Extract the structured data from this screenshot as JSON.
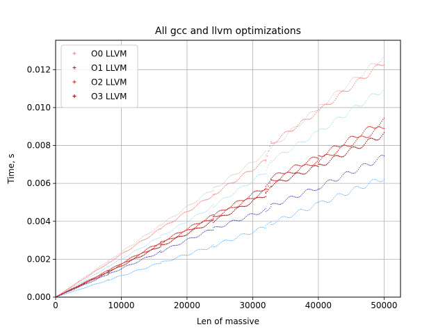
{
  "chart_data": {
    "type": "scatter",
    "title": "All gcc and llvm optimizations",
    "xlabel": "Len of massive",
    "ylabel": "Time, s",
    "xlim": [
      0,
      52500
    ],
    "ylim": [
      0,
      0.01355
    ],
    "xticks": [
      0,
      10000,
      20000,
      30000,
      40000,
      50000
    ],
    "xtick_labels": [
      "0",
      "10000",
      "20000",
      "30000",
      "40000",
      "50000"
    ],
    "yticks": [
      0,
      0.002,
      0.004,
      0.006,
      0.008,
      0.01,
      0.012
    ],
    "ytick_labels": [
      "0.000",
      "0.002",
      "0.004",
      "0.006",
      "0.008",
      "0.010",
      "0.012"
    ],
    "grid": true,
    "legend_position": "top-left",
    "series": [
      {
        "name": "O0 LLVM",
        "color": "#f08080",
        "marker": "+",
        "in_legend": true,
        "points": [
          [
            0,
            0
          ],
          [
            8000,
            0.0018
          ],
          [
            16000,
            0.0036
          ],
          [
            24000,
            0.0054
          ],
          [
            32000,
            0.0072
          ],
          [
            32800,
            0.0081
          ],
          [
            40000,
            0.0098
          ],
          [
            50000,
            0.0124
          ]
        ]
      },
      {
        "name": "O1 LLVM",
        "color": "#b22222",
        "marker": "+",
        "in_legend": true,
        "points": [
          [
            0,
            0
          ],
          [
            8000,
            0.0014
          ],
          [
            16000,
            0.0029
          ],
          [
            24000,
            0.0043
          ],
          [
            32000,
            0.0058
          ],
          [
            32800,
            0.0063
          ],
          [
            40000,
            0.0074
          ],
          [
            50000,
            0.0093
          ]
        ]
      },
      {
        "name": "O2 LLVM",
        "color": "#dd1111",
        "marker": "+",
        "in_legend": true,
        "points": [
          [
            0,
            0
          ],
          [
            8000,
            0.00135
          ],
          [
            16000,
            0.0028
          ],
          [
            24000,
            0.0042
          ],
          [
            32000,
            0.0056
          ],
          [
            32800,
            0.0061
          ],
          [
            40000,
            0.0072
          ],
          [
            50000,
            0.009
          ]
        ]
      },
      {
        "name": "O3 LLVM",
        "color": "#8b0000",
        "marker": "+",
        "in_legend": true,
        "points": [
          [
            0,
            0
          ],
          [
            8000,
            0.0013
          ],
          [
            16000,
            0.0027
          ],
          [
            24000,
            0.004
          ],
          [
            32000,
            0.0054
          ],
          [
            32800,
            0.0059
          ],
          [
            40000,
            0.0069
          ],
          [
            50000,
            0.0086
          ]
        ]
      },
      {
        "name": "",
        "color": "#d3a6a6",
        "marker": ".",
        "in_legend": false,
        "points": [
          [
            0,
            0
          ],
          [
            8000,
            0.0019
          ],
          [
            16000,
            0.0038
          ],
          [
            24000,
            0.0057
          ],
          [
            32000,
            0.0076
          ],
          [
            40000,
            0.01
          ],
          [
            50000,
            0.0127
          ]
        ]
      },
      {
        "name": "",
        "color": "#87ceeb",
        "marker": ".",
        "in_legend": false,
        "points": [
          [
            0,
            0
          ],
          [
            8000,
            0.0016
          ],
          [
            16000,
            0.0032
          ],
          [
            24000,
            0.0048
          ],
          [
            32000,
            0.0066
          ],
          [
            32800,
            0.0072
          ],
          [
            40000,
            0.0087
          ],
          [
            50000,
            0.011
          ]
        ]
      },
      {
        "name": "",
        "color": "#00008b",
        "marker": ".",
        "in_legend": false,
        "points": [
          [
            0,
            0
          ],
          [
            8000,
            0.0012
          ],
          [
            16000,
            0.0024
          ],
          [
            24000,
            0.0036
          ],
          [
            32000,
            0.0046
          ],
          [
            32800,
            0.0048
          ],
          [
            40000,
            0.0058
          ],
          [
            50000,
            0.0074
          ]
        ]
      },
      {
        "name": "",
        "color": "#3399ff",
        "marker": ".",
        "in_legend": false,
        "points": [
          [
            0,
            0
          ],
          [
            8000,
            0.0009
          ],
          [
            16000,
            0.0018
          ],
          [
            24000,
            0.0027
          ],
          [
            32000,
            0.0037
          ],
          [
            32800,
            0.0039
          ],
          [
            40000,
            0.0049
          ],
          [
            50000,
            0.0063
          ]
        ]
      }
    ]
  }
}
